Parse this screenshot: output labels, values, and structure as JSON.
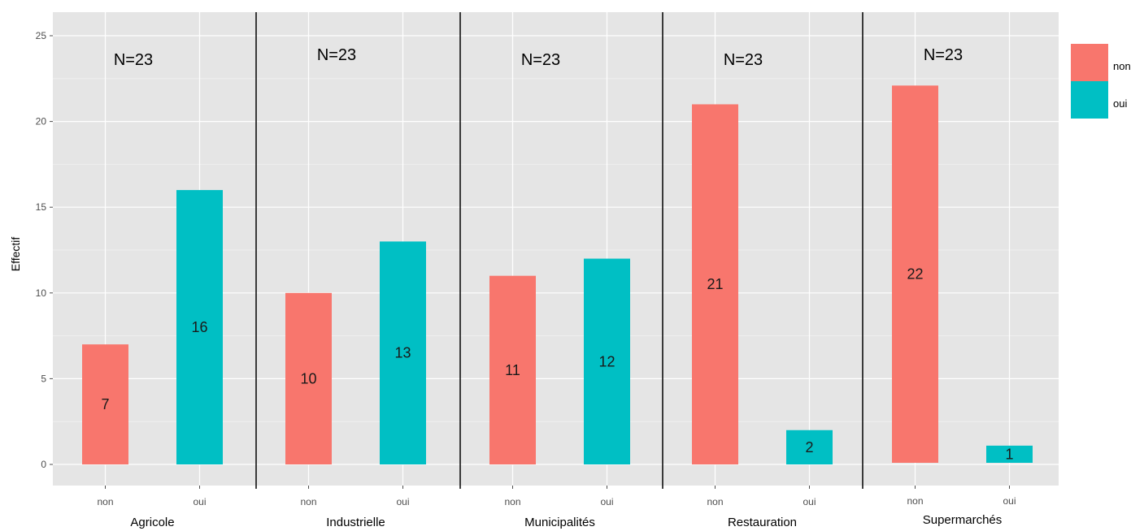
{
  "chart_data": {
    "type": "bar",
    "ylabel": "Effectif",
    "ylim": [
      0,
      25
    ],
    "y_ticks": [
      0,
      5,
      10,
      15,
      20,
      25
    ],
    "grid": true,
    "legend_position": "right",
    "groups": [
      "non",
      "oui"
    ],
    "colors": {
      "non": "#F8766D",
      "oui": "#00BFC4"
    },
    "facets": [
      {
        "name": "Agricole",
        "n_label": "N=23",
        "values": {
          "non": 7,
          "oui": 16
        }
      },
      {
        "name": "Industrielle",
        "n_label": "N=23",
        "values": {
          "non": 10,
          "oui": 13
        }
      },
      {
        "name": "Municipalités",
        "n_label": "N=23",
        "values": {
          "non": 11,
          "oui": 12
        }
      },
      {
        "name": "Restauration",
        "n_label": "N=23",
        "values": {
          "non": 21,
          "oui": 2
        }
      },
      {
        "name": "Supermarchés",
        "n_label": "N=23",
        "values": {
          "non": 22,
          "oui": 1
        }
      }
    ],
    "legend": [
      {
        "key": "non",
        "label": "non"
      },
      {
        "key": "oui",
        "label": "oui"
      }
    ]
  }
}
